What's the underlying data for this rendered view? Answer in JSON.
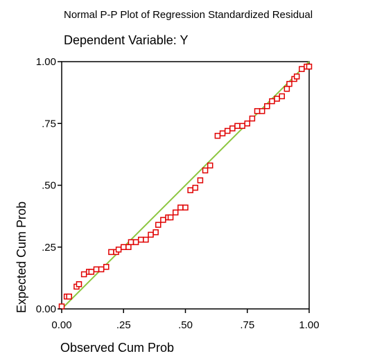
{
  "chart_data": {
    "type": "scatter",
    "title": "Normal P-P Plot of Regression Standardized Residual",
    "subtitle": "Dependent Variable: Y",
    "xlabel": "Observed Cum Prob",
    "ylabel": "Expected Cum Prob",
    "xlim": [
      0,
      1
    ],
    "ylim": [
      0,
      1
    ],
    "xticks": [
      {
        "value": 0,
        "label": "0.00"
      },
      {
        "value": 0.25,
        "label": ".25"
      },
      {
        "value": 0.5,
        "label": ".50"
      },
      {
        "value": 0.75,
        "label": ".75"
      },
      {
        "value": 1,
        "label": "1.00"
      }
    ],
    "yticks": [
      {
        "value": 0,
        "label": "0.00"
      },
      {
        "value": 0.25,
        "label": ".25"
      },
      {
        "value": 0.5,
        "label": ".50"
      },
      {
        "value": 0.75,
        "label": ".75"
      },
      {
        "value": 1,
        "label": "1.00"
      }
    ],
    "grid": false,
    "reference_line": {
      "from": [
        0,
        0
      ],
      "to": [
        1,
        1
      ],
      "color": "#8cc63f"
    },
    "marker_color": "#e00000",
    "points": [
      {
        "x": 0.0,
        "y": 0.01
      },
      {
        "x": 0.02,
        "y": 0.05
      },
      {
        "x": 0.03,
        "y": 0.05
      },
      {
        "x": 0.06,
        "y": 0.09
      },
      {
        "x": 0.07,
        "y": 0.1
      },
      {
        "x": 0.09,
        "y": 0.14
      },
      {
        "x": 0.11,
        "y": 0.15
      },
      {
        "x": 0.12,
        "y": 0.15
      },
      {
        "x": 0.14,
        "y": 0.16
      },
      {
        "x": 0.16,
        "y": 0.16
      },
      {
        "x": 0.18,
        "y": 0.17
      },
      {
        "x": 0.2,
        "y": 0.23
      },
      {
        "x": 0.22,
        "y": 0.23
      },
      {
        "x": 0.23,
        "y": 0.24
      },
      {
        "x": 0.25,
        "y": 0.25
      },
      {
        "x": 0.27,
        "y": 0.25
      },
      {
        "x": 0.28,
        "y": 0.27
      },
      {
        "x": 0.3,
        "y": 0.27
      },
      {
        "x": 0.32,
        "y": 0.28
      },
      {
        "x": 0.34,
        "y": 0.28
      },
      {
        "x": 0.36,
        "y": 0.3
      },
      {
        "x": 0.38,
        "y": 0.31
      },
      {
        "x": 0.39,
        "y": 0.34
      },
      {
        "x": 0.41,
        "y": 0.36
      },
      {
        "x": 0.43,
        "y": 0.37
      },
      {
        "x": 0.44,
        "y": 0.37
      },
      {
        "x": 0.46,
        "y": 0.39
      },
      {
        "x": 0.48,
        "y": 0.41
      },
      {
        "x": 0.5,
        "y": 0.41
      },
      {
        "x": 0.52,
        "y": 0.48
      },
      {
        "x": 0.54,
        "y": 0.49
      },
      {
        "x": 0.56,
        "y": 0.52
      },
      {
        "x": 0.58,
        "y": 0.56
      },
      {
        "x": 0.6,
        "y": 0.58
      },
      {
        "x": 0.63,
        "y": 0.7
      },
      {
        "x": 0.65,
        "y": 0.71
      },
      {
        "x": 0.67,
        "y": 0.72
      },
      {
        "x": 0.69,
        "y": 0.73
      },
      {
        "x": 0.71,
        "y": 0.74
      },
      {
        "x": 0.73,
        "y": 0.74
      },
      {
        "x": 0.75,
        "y": 0.75
      },
      {
        "x": 0.77,
        "y": 0.77
      },
      {
        "x": 0.79,
        "y": 0.8
      },
      {
        "x": 0.81,
        "y": 0.8
      },
      {
        "x": 0.83,
        "y": 0.82
      },
      {
        "x": 0.85,
        "y": 0.84
      },
      {
        "x": 0.87,
        "y": 0.85
      },
      {
        "x": 0.89,
        "y": 0.86
      },
      {
        "x": 0.91,
        "y": 0.89
      },
      {
        "x": 0.92,
        "y": 0.91
      },
      {
        "x": 0.94,
        "y": 0.93
      },
      {
        "x": 0.95,
        "y": 0.94
      },
      {
        "x": 0.97,
        "y": 0.97
      },
      {
        "x": 0.99,
        "y": 0.98
      },
      {
        "x": 1.0,
        "y": 0.98
      }
    ]
  }
}
